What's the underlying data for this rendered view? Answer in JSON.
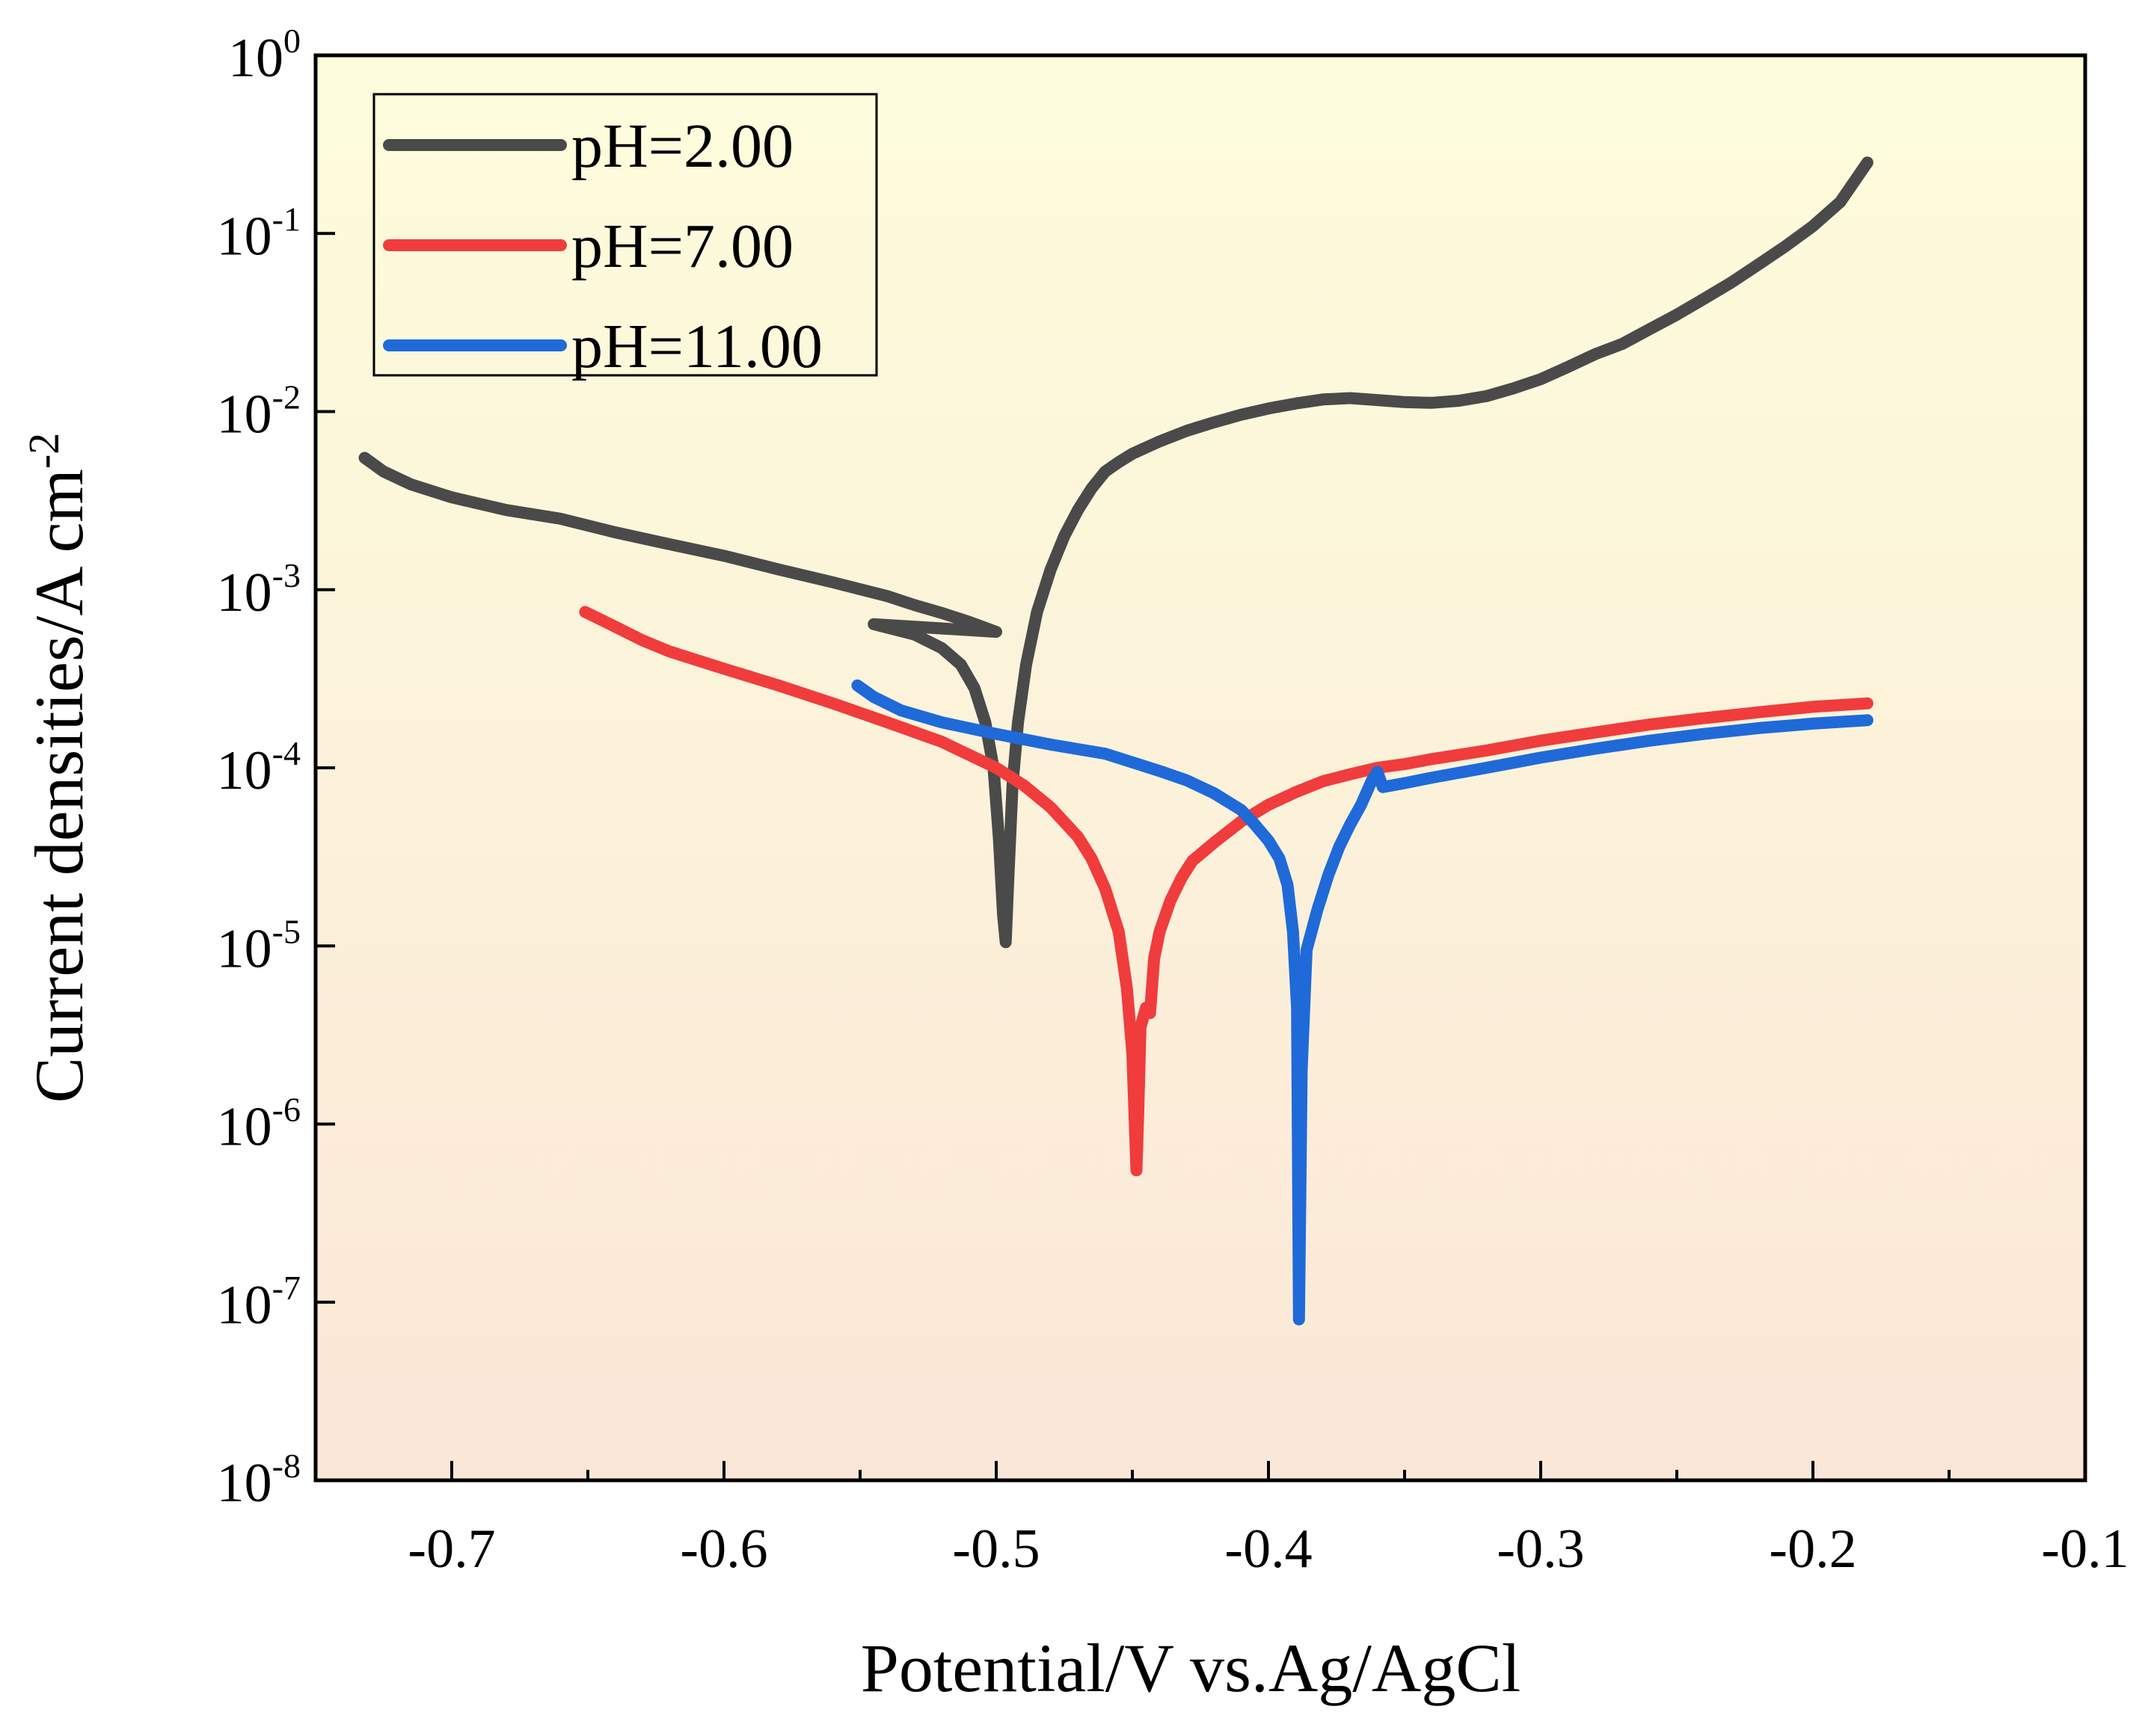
{
  "chart_data": {
    "type": "line",
    "title": "",
    "xlabel": "Potential/V vs.Ag/AgCl",
    "ylabel": {
      "base": "Current densities/A cm",
      "sup": "-2"
    },
    "xlim": [
      -0.75,
      -0.1
    ],
    "ylim_log10": [
      -8,
      0
    ],
    "yscale": "log",
    "grid": false,
    "legend_position": "top-left",
    "background_gradient": [
      "#fdfddc",
      "#fbe7d8"
    ],
    "x_ticks": [
      {
        "value": -0.7,
        "label": "-0.7"
      },
      {
        "value": -0.6,
        "label": "-0.6"
      },
      {
        "value": -0.5,
        "label": "-0.5"
      },
      {
        "value": -0.4,
        "label": "-0.4"
      },
      {
        "value": -0.3,
        "label": "-0.3"
      },
      {
        "value": -0.2,
        "label": "-0.2"
      },
      {
        "value": -0.1,
        "label": "-0.1"
      }
    ],
    "y_ticks": [
      {
        "exp": 0,
        "base": "10",
        "sup": "0"
      },
      {
        "exp": -1,
        "base": "10",
        "sup": "-1"
      },
      {
        "exp": -2,
        "base": "10",
        "sup": "-2"
      },
      {
        "exp": -3,
        "base": "10",
        "sup": "-3"
      },
      {
        "exp": -4,
        "base": "10",
        "sup": "-4"
      },
      {
        "exp": -5,
        "base": "10",
        "sup": "-5"
      },
      {
        "exp": -6,
        "base": "10",
        "sup": "-6"
      },
      {
        "exp": -7,
        "base": "10",
        "sup": "-7"
      },
      {
        "exp": -8,
        "base": "10",
        "sup": "-8"
      }
    ],
    "series": [
      {
        "name": "pH=2.00",
        "color": "#4a4a4a",
        "points": [
          [
            -0.732,
            0.0055
          ],
          [
            -0.725,
            0.0046
          ],
          [
            -0.715,
            0.0039
          ],
          [
            -0.7,
            0.0033
          ],
          [
            -0.68,
            0.0028
          ],
          [
            -0.66,
            0.0025
          ],
          [
            -0.64,
            0.0021
          ],
          [
            -0.62,
            0.0018
          ],
          [
            -0.6,
            0.00155
          ],
          [
            -0.58,
            0.0013
          ],
          [
            -0.56,
            0.0011
          ],
          [
            -0.54,
            0.00092
          ],
          [
            -0.53,
            0.00082
          ],
          [
            -0.52,
            0.00074
          ],
          [
            -0.51,
            0.00066
          ],
          [
            -0.5,
            0.00058
          ],
          [
            -0.545,
            0.00064
          ],
          [
            -0.53,
            0.00056
          ],
          [
            -0.52,
            0.00047
          ],
          [
            -0.513,
            0.00038
          ],
          [
            -0.508,
            0.00028
          ],
          [
            -0.504,
            0.00018
          ],
          [
            -0.501,
            0.0001
          ],
          [
            -0.499,
            4e-05
          ],
          [
            -0.4975,
            1.5e-05
          ],
          [
            -0.4965,
            1.05e-05
          ],
          [
            -0.4955,
            2.5e-05
          ],
          [
            -0.494,
            8e-05
          ],
          [
            -0.492,
            0.00018
          ],
          [
            -0.489,
            0.00038
          ],
          [
            -0.485,
            0.00075
          ],
          [
            -0.48,
            0.0013
          ],
          [
            -0.475,
            0.002
          ],
          [
            -0.47,
            0.0028
          ],
          [
            -0.465,
            0.0037
          ],
          [
            -0.46,
            0.0046
          ],
          [
            -0.455,
            0.0052
          ],
          [
            -0.45,
            0.0058
          ],
          [
            -0.44,
            0.0068
          ],
          [
            -0.43,
            0.0078
          ],
          [
            -0.42,
            0.0087
          ],
          [
            -0.41,
            0.0096
          ],
          [
            -0.4,
            0.0104
          ],
          [
            -0.39,
            0.0111
          ],
          [
            -0.38,
            0.0117
          ],
          [
            -0.37,
            0.0119
          ],
          [
            -0.36,
            0.0116
          ],
          [
            -0.35,
            0.0113
          ],
          [
            -0.34,
            0.0112
          ],
          [
            -0.33,
            0.0115
          ],
          [
            -0.32,
            0.0122
          ],
          [
            -0.31,
            0.0135
          ],
          [
            -0.3,
            0.0152
          ],
          [
            -0.29,
            0.0178
          ],
          [
            -0.28,
            0.021
          ],
          [
            -0.27,
            0.024
          ],
          [
            -0.26,
            0.029
          ],
          [
            -0.25,
            0.035
          ],
          [
            -0.24,
            0.043
          ],
          [
            -0.23,
            0.053
          ],
          [
            -0.22,
            0.067
          ],
          [
            -0.21,
            0.085
          ],
          [
            -0.2,
            0.11
          ],
          [
            -0.19,
            0.15
          ],
          [
            -0.18,
            0.25
          ]
        ]
      },
      {
        "name": "pH=7.00",
        "color": "#f03c3c",
        "points": [
          [
            -0.651,
            0.00075
          ],
          [
            -0.64,
            0.00062
          ],
          [
            -0.63,
            0.00052
          ],
          [
            -0.62,
            0.00045
          ],
          [
            -0.6,
            0.00036
          ],
          [
            -0.58,
            0.00029
          ],
          [
            -0.56,
            0.00023
          ],
          [
            -0.54,
            0.00018
          ],
          [
            -0.52,
            0.00014
          ],
          [
            -0.5,
            0.0001
          ],
          [
            -0.49,
            8e-05
          ],
          [
            -0.48,
            6e-05
          ],
          [
            -0.47,
            4.1e-05
          ],
          [
            -0.465,
            3.1e-05
          ],
          [
            -0.46,
            2.1e-05
          ],
          [
            -0.455,
            1.2e-05
          ],
          [
            -0.452,
            5.8e-06
          ],
          [
            -0.45,
            2.5e-06
          ],
          [
            -0.4485,
            5.5e-07
          ],
          [
            -0.4478,
            1.2e-06
          ],
          [
            -0.447,
            3.5e-06
          ],
          [
            -0.445,
            4.5e-06
          ],
          [
            -0.4435,
            4.2e-06
          ],
          [
            -0.442,
            8.5e-06
          ],
          [
            -0.44,
            1.2e-05
          ],
          [
            -0.436,
            1.8e-05
          ],
          [
            -0.432,
            2.4e-05
          ],
          [
            -0.428,
            3e-05
          ],
          [
            -0.42,
            3.8e-05
          ],
          [
            -0.41,
            5e-05
          ],
          [
            -0.4,
            6.2e-05
          ],
          [
            -0.39,
            7.3e-05
          ],
          [
            -0.38,
            8.4e-05
          ],
          [
            -0.37,
            9.2e-05
          ],
          [
            -0.36,
            0.0001
          ],
          [
            -0.35,
            0.000105
          ],
          [
            -0.34,
            0.000112
          ],
          [
            -0.32,
            0.000125
          ],
          [
            -0.3,
            0.000142
          ],
          [
            -0.28,
            0.000158
          ],
          [
            -0.26,
            0.000175
          ],
          [
            -0.24,
            0.00019
          ],
          [
            -0.22,
            0.000205
          ],
          [
            -0.2,
            0.00022
          ],
          [
            -0.18,
            0.00023
          ]
        ]
      },
      {
        "name": "pH=11.00",
        "color": "#1f6ad8",
        "points": [
          [
            -0.551,
            0.00029
          ],
          [
            -0.545,
            0.00025
          ],
          [
            -0.535,
            0.00021
          ],
          [
            -0.52,
            0.00018
          ],
          [
            -0.5,
            0.000155
          ],
          [
            -0.48,
            0.000135
          ],
          [
            -0.46,
            0.00012
          ],
          [
            -0.44,
            9.6e-05
          ],
          [
            -0.43,
            8.5e-05
          ],
          [
            -0.42,
            7.2e-05
          ],
          [
            -0.41,
            5.8e-05
          ],
          [
            -0.405,
            4.8e-05
          ],
          [
            -0.4,
            3.9e-05
          ],
          [
            -0.396,
            3.1e-05
          ],
          [
            -0.393,
            2.2e-05
          ],
          [
            -0.391,
            1.2e-05
          ],
          [
            -0.3895,
            4.5e-06
          ],
          [
            -0.3888,
            8e-08
          ],
          [
            -0.3878,
            2e-06
          ],
          [
            -0.386,
            9.5e-06
          ],
          [
            -0.382,
            1.6e-05
          ],
          [
            -0.378,
            2.5e-05
          ],
          [
            -0.374,
            3.6e-05
          ],
          [
            -0.37,
            4.8e-05
          ],
          [
            -0.366,
            6.2e-05
          ],
          [
            -0.362,
            8.5e-05
          ],
          [
            -0.36,
            9.5e-05
          ],
          [
            -0.358,
            7.8e-05
          ],
          [
            -0.35,
            8.2e-05
          ],
          [
            -0.34,
            8.8e-05
          ],
          [
            -0.32,
            0.0001
          ],
          [
            -0.3,
            0.000114
          ],
          [
            -0.28,
            0.000128
          ],
          [
            -0.26,
            0.000142
          ],
          [
            -0.24,
            0.000155
          ],
          [
            -0.22,
            0.000167
          ],
          [
            -0.2,
            0.000177
          ],
          [
            -0.18,
            0.000185
          ]
        ]
      }
    ]
  }
}
